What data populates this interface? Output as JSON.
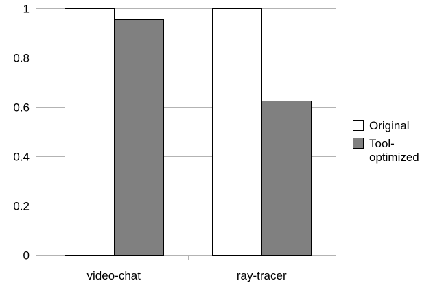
{
  "chart_data": {
    "type": "bar",
    "title": "",
    "xlabel": "",
    "ylabel": "",
    "categories": [
      "video-chat",
      "ray-tracer"
    ],
    "series": [
      {
        "name": "Original",
        "values": [
          1.0,
          1.0
        ],
        "color": "#ffffff",
        "stroke": "#000000"
      },
      {
        "name": "Tool-optimized",
        "legend_lines": [
          "Tool-",
          "optimized"
        ],
        "values": [
          0.955,
          0.625
        ],
        "color": "#808080",
        "stroke": "#000000"
      }
    ],
    "ylim": [
      0,
      1
    ],
    "yticks": [
      0,
      0.2,
      0.4,
      0.6,
      0.8,
      1
    ],
    "ytick_labels": [
      "0",
      "0.2",
      "0.4",
      "0.6",
      "0.8",
      "1"
    ],
    "grid": "horizontal",
    "grid_color": "#b3b3b3",
    "legend_position": "right"
  }
}
